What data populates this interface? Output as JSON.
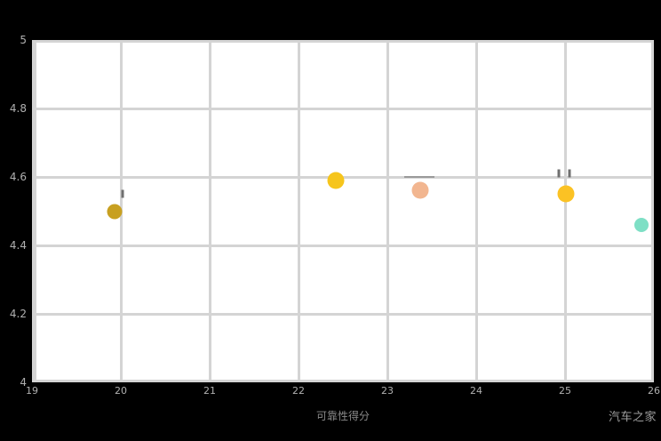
{
  "chart_data": {
    "type": "scatter",
    "title": "",
    "xlabel": "可靠性得分",
    "ylabel": "",
    "xlim": [
      19,
      26
    ],
    "ylim": [
      4,
      5
    ],
    "grid": true,
    "legend": "none",
    "x_ticks": [
      "19",
      "20",
      "21",
      "22",
      "23",
      "24",
      "25",
      "26"
    ],
    "y_ticks": [
      "5",
      "4.8",
      "4.6",
      "4.4",
      "4.2",
      "4"
    ],
    "points": [
      {
        "x": 19.93,
        "y": 4.5,
        "color": "#c8a021",
        "size": 17
      },
      {
        "x": 22.42,
        "y": 4.59,
        "color": "#f6c51c",
        "size": 19
      },
      {
        "x": 23.37,
        "y": 4.56,
        "color": "#f2b690",
        "size": 19
      },
      {
        "x": 25.01,
        "y": 4.55,
        "color": "#fbc224",
        "size": 19
      },
      {
        "x": 25.86,
        "y": 4.46,
        "color": "#7edfc5",
        "size": 16
      }
    ],
    "annotations": [
      {
        "x": 20.02,
        "y": 4.55,
        "kind": "tick"
      },
      {
        "x": 23.36,
        "y": 4.6,
        "kind": "dash"
      },
      {
        "x": 24.99,
        "y": 4.61,
        "kind": "double-tick"
      }
    ],
    "watermark": "汽车之家",
    "colors": {
      "background": "#000000",
      "plot_bg": "#ffffff",
      "grid": "#d4d4d4",
      "tick_text": "#b0b0b0"
    }
  }
}
